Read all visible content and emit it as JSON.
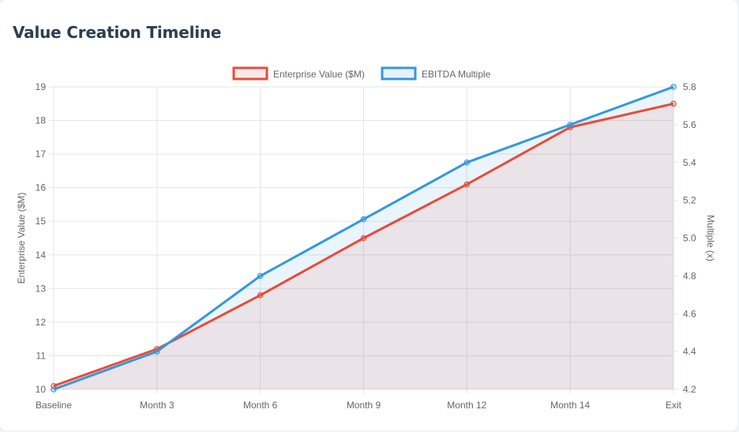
{
  "card": {
    "title": "Value Creation Timeline"
  },
  "chart_data": {
    "type": "line",
    "title": "",
    "categories": [
      "Baseline",
      "Month 3",
      "Month 6",
      "Month 9",
      "Month 12",
      "Month 14",
      "Exit"
    ],
    "series": [
      {
        "name": "Enterprise Value ($M)",
        "axis": "left",
        "color": "#e74c3c",
        "fill": "area",
        "values": [
          10.1,
          11.2,
          12.8,
          14.5,
          16.1,
          17.8,
          18.5
        ]
      },
      {
        "name": "EBITDA Multiple",
        "axis": "right",
        "color": "#3498db",
        "fill": "area",
        "values": [
          4.2,
          4.4,
          4.8,
          5.1,
          5.4,
          5.6,
          5.8
        ]
      }
    ],
    "y_left": {
      "label": "Enterprise Value ($M)",
      "range": [
        10,
        19
      ],
      "ticks": [
        "10",
        "11",
        "12",
        "13",
        "14",
        "15",
        "16",
        "17",
        "18",
        "19"
      ]
    },
    "y_right": {
      "label": "Multiple (x)",
      "range": [
        4.2,
        5.8
      ],
      "ticks": [
        "4.2",
        "4.4",
        "4.6",
        "4.8",
        "5.0",
        "5.2",
        "5.4",
        "5.6",
        "5.8"
      ]
    },
    "grid": true,
    "legend": "top"
  }
}
